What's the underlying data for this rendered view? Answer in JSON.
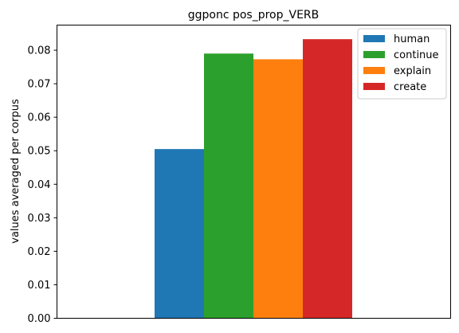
{
  "chart_data": {
    "type": "bar",
    "title": "ggponc pos_prop_VERB",
    "xlabel": "",
    "ylabel": "values averaged per corpus",
    "ylim": [
      0,
      0.0875
    ],
    "yticks": [
      0.0,
      0.01,
      0.02,
      0.03,
      0.04,
      0.05,
      0.06,
      0.07,
      0.08
    ],
    "ytick_labels": [
      "0.00",
      "0.01",
      "0.02",
      "0.03",
      "0.04",
      "0.05",
      "0.06",
      "0.07",
      "0.08"
    ],
    "grid": false,
    "legend_position": "top-right",
    "series": [
      {
        "name": "human",
        "values": [
          0.0505
        ],
        "color": "#1f77b4"
      },
      {
        "name": "continue",
        "values": [
          0.079
        ],
        "color": "#2ca02c"
      },
      {
        "name": "explain",
        "values": [
          0.0773
        ],
        "color": "#ff7f0e"
      },
      {
        "name": "create",
        "values": [
          0.0833
        ],
        "color": "#d62728"
      }
    ]
  }
}
